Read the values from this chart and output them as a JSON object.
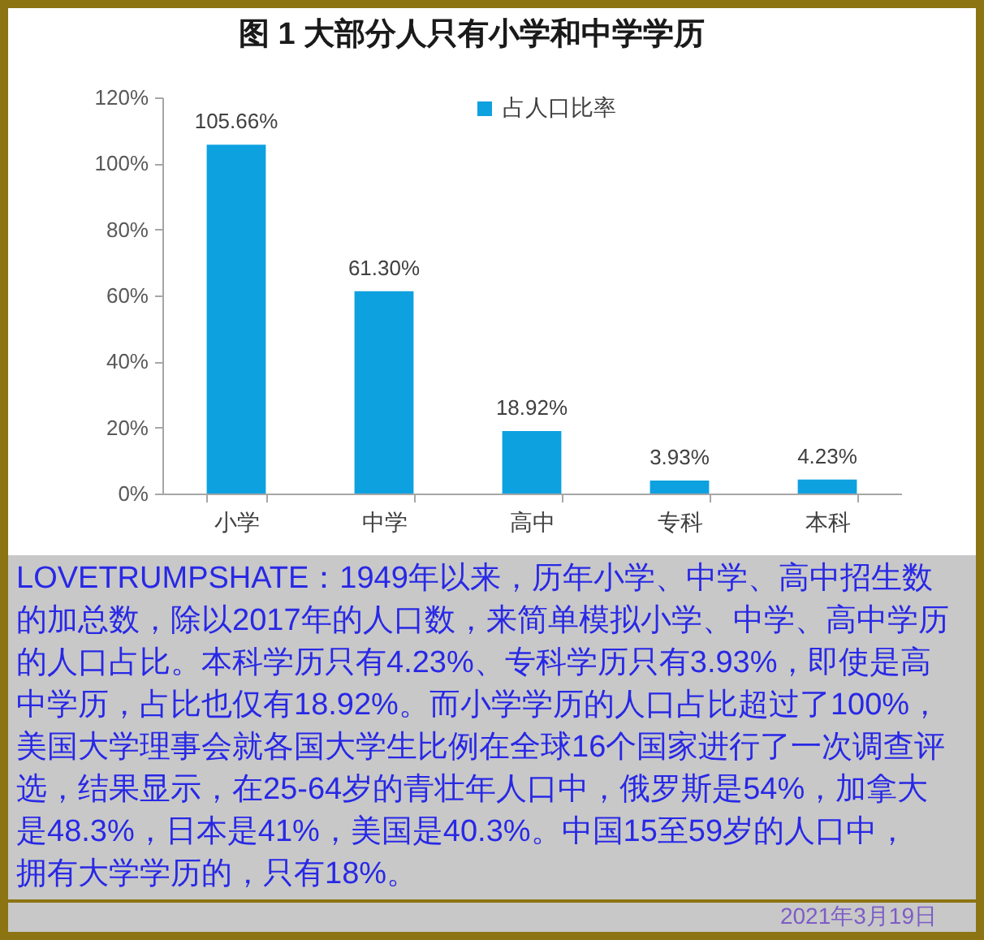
{
  "chart_data": {
    "type": "bar",
    "title": "图 1 大部分人只有小学和中学学历",
    "categories": [
      "小学",
      "中学",
      "高中",
      "专科",
      "本科"
    ],
    "series": [
      {
        "name": "占人口比率",
        "color": "#0ea1e0",
        "values": [
          105.66,
          61.3,
          18.92,
          3.93,
          4.23
        ],
        "value_labels": [
          "105.66%",
          "61.30%",
          "18.92%",
          "3.93%",
          "4.23%"
        ]
      }
    ],
    "ylim": [
      0,
      120
    ],
    "yticks": [
      {
        "value": 0,
        "label": "0%"
      },
      {
        "value": 20,
        "label": "20%"
      },
      {
        "value": 40,
        "label": "40%"
      },
      {
        "value": 60,
        "label": "60%"
      },
      {
        "value": 80,
        "label": "80%"
      },
      {
        "value": 100,
        "label": "100%"
      },
      {
        "value": 120,
        "label": "120%"
      }
    ],
    "legend": "top",
    "annotations": [
      "LOVETRUMPSHATE：1949年以来，历年小学、中学、高中招生数的加总数，除以2017年的人口数，来简单模拟小学、中学、高中学历的人口占比。本科学历只有4.23%、专科学历只有3.93%，即使是高中学历，占比也仅有18.92%。而小学学历的人口占比超过了100%，美国大学理事会就各国大学生比例在全球16个国家进行了一次调查评选，结果显示，在25-64岁的青壮年人口中，俄罗斯是54%，加拿大是48.3%，日本是41%，美国是40.3%。中国15至59岁的人口中，拥有大学学历的，只有18%。",
      "2021年3月19日"
    ]
  }
}
